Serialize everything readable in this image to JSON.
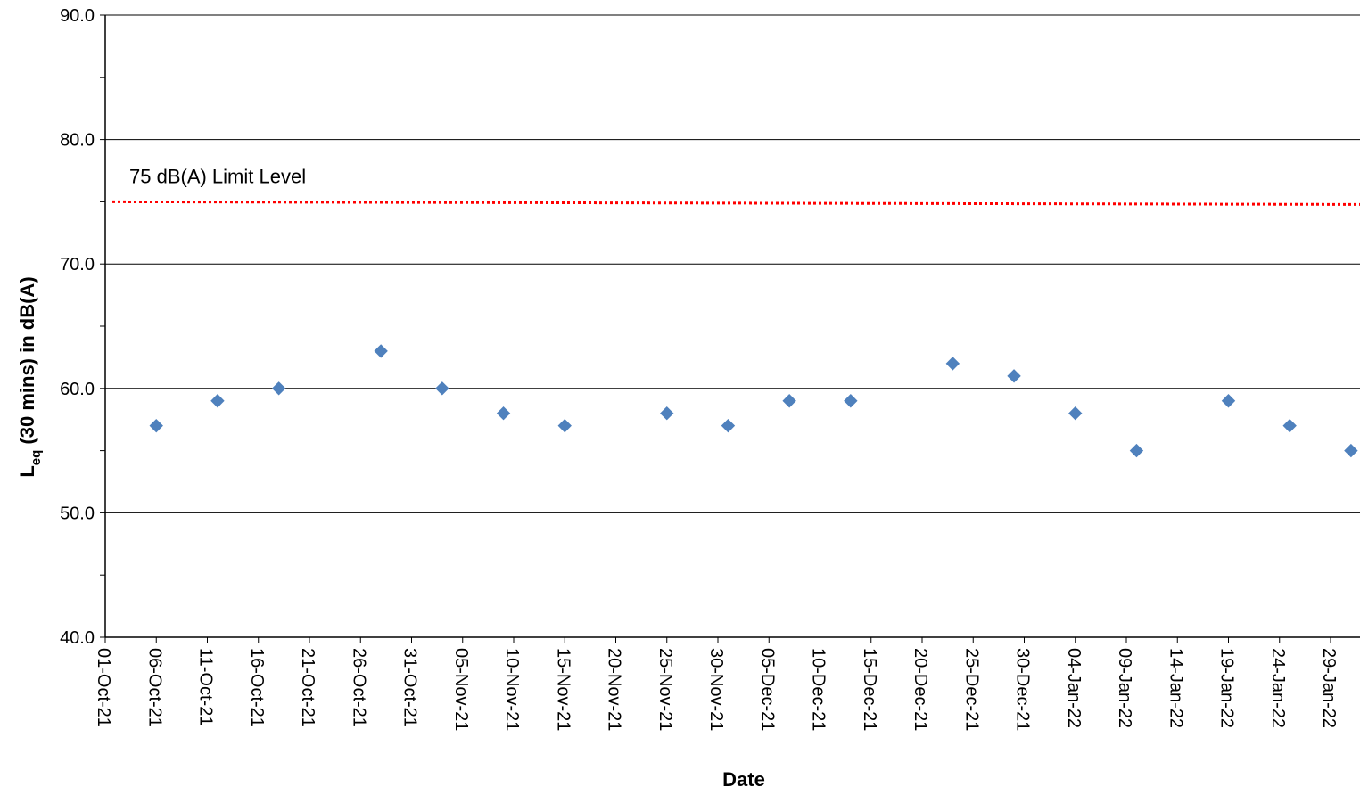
{
  "chart_data": {
    "type": "scatter",
    "title": "",
    "xlabel": "Date",
    "ylabel": {
      "main": "L",
      "subscript": "eq",
      "rest": " (30 mins) in dB(A)"
    },
    "ylim": [
      40,
      90
    ],
    "y_major_step": 10,
    "y_minor_step": 5,
    "y_tick_labels": [
      "40.0",
      "50.0",
      "60.0",
      "70.0",
      "80.0",
      "90.0"
    ],
    "xlim": [
      "2021-10-01",
      "2022-02-01"
    ],
    "x_tick_labels": [
      "01-Oct-21",
      "06-Oct-21",
      "11-Oct-21",
      "16-Oct-21",
      "21-Oct-21",
      "26-Oct-21",
      "31-Oct-21",
      "05-Nov-21",
      "10-Nov-21",
      "15-Nov-21",
      "20-Nov-21",
      "25-Nov-21",
      "30-Nov-21",
      "05-Dec-21",
      "10-Dec-21",
      "15-Dec-21",
      "20-Dec-21",
      "25-Dec-21",
      "30-Dec-21",
      "04-Jan-22",
      "09-Jan-22",
      "14-Jan-22",
      "19-Jan-22",
      "24-Jan-22",
      "29-Jan-22"
    ],
    "x_tick_dates": [
      "2021-10-01",
      "2021-10-06",
      "2021-10-11",
      "2021-10-16",
      "2021-10-21",
      "2021-10-26",
      "2021-10-31",
      "2021-11-05",
      "2021-11-10",
      "2021-11-15",
      "2021-11-20",
      "2021-11-25",
      "2021-11-30",
      "2021-12-05",
      "2021-12-10",
      "2021-12-15",
      "2021-12-20",
      "2021-12-25",
      "2021-12-30",
      "2022-01-04",
      "2022-01-09",
      "2022-01-14",
      "2022-01-19",
      "2022-01-24",
      "2022-01-29"
    ],
    "grid": "horizontal major",
    "series": [
      {
        "color": "#4F81BD",
        "marker": "diamond",
        "points": [
          {
            "x": "2021-10-06",
            "y": 57
          },
          {
            "x": "2021-10-12",
            "y": 59
          },
          {
            "x": "2021-10-18",
            "y": 60
          },
          {
            "x": "2021-10-28",
            "y": 63
          },
          {
            "x": "2021-11-03",
            "y": 60
          },
          {
            "x": "2021-11-09",
            "y": 58
          },
          {
            "x": "2021-11-15",
            "y": 57
          },
          {
            "x": "2021-11-25",
            "y": 58
          },
          {
            "x": "2021-12-01",
            "y": 57
          },
          {
            "x": "2021-12-07",
            "y": 59
          },
          {
            "x": "2021-12-13",
            "y": 59
          },
          {
            "x": "2021-12-23",
            "y": 62
          },
          {
            "x": "2021-12-29",
            "y": 61
          },
          {
            "x": "2022-01-04",
            "y": 58
          },
          {
            "x": "2022-01-10",
            "y": 55
          },
          {
            "x": "2022-01-19",
            "y": 59
          },
          {
            "x": "2022-01-25",
            "y": 57
          },
          {
            "x": "2022-01-31",
            "y": 55
          }
        ]
      }
    ],
    "reference_line": {
      "label": "75 dB(A) Limit Level",
      "y": 75,
      "color": "#FF0000",
      "style": "dotted"
    }
  }
}
